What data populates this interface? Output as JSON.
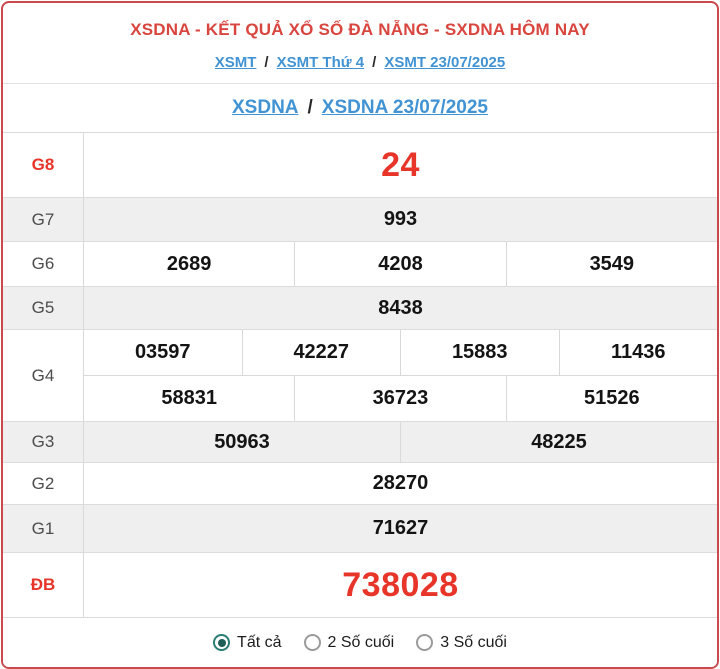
{
  "header": {
    "title": "XSDNA - KẾT QUẢ XỔ SỐ ĐÀ NẴNG - SXDNA HÔM NAY",
    "breadcrumb": {
      "separator": "/",
      "items": [
        {
          "label": "XSMT"
        },
        {
          "label": "XSMT Thứ 4"
        },
        {
          "label": "XSMT 23/07/2025"
        }
      ]
    },
    "subnav": {
      "separator": "/",
      "items": [
        {
          "label": "XSDNA"
        },
        {
          "label": "XSDNA 23/07/2025"
        }
      ]
    }
  },
  "results": {
    "rows": [
      {
        "label": "G8",
        "highlight": true,
        "cells": [
          [
            "24"
          ]
        ]
      },
      {
        "label": "G7",
        "highlight": false,
        "cells": [
          [
            "993"
          ]
        ]
      },
      {
        "label": "G6",
        "highlight": false,
        "cells": [
          [
            "2689",
            "4208",
            "3549"
          ]
        ]
      },
      {
        "label": "G5",
        "highlight": false,
        "cells": [
          [
            "8438"
          ]
        ]
      },
      {
        "label": "G4",
        "highlight": false,
        "cells": [
          [
            "03597",
            "42227",
            "15883",
            "11436"
          ],
          [
            "58831",
            "36723",
            "51526"
          ]
        ]
      },
      {
        "label": "G3",
        "highlight": false,
        "cells": [
          [
            "50963",
            "48225"
          ]
        ]
      },
      {
        "label": "G2",
        "highlight": false,
        "cells": [
          [
            "28270"
          ]
        ]
      },
      {
        "label": "G1",
        "highlight": false,
        "cells": [
          [
            "71627"
          ]
        ]
      },
      {
        "label": "ĐB",
        "highlight": true,
        "cells": [
          [
            "738028"
          ]
        ]
      }
    ]
  },
  "filter": {
    "options": [
      {
        "label": "Tất cả",
        "selected": true
      },
      {
        "label": "2 Số cuối",
        "selected": false
      },
      {
        "label": "3 Số cuối",
        "selected": false
      }
    ]
  },
  "colors": {
    "accent_red": "#e8352a",
    "title_red": "#d9453f",
    "border_red": "#c9494d",
    "link_blue": "#4193d3",
    "row_alt_bg": "#efefef",
    "radio_teal": "#2a7d74",
    "divider_gray": "#d9d9d9"
  }
}
